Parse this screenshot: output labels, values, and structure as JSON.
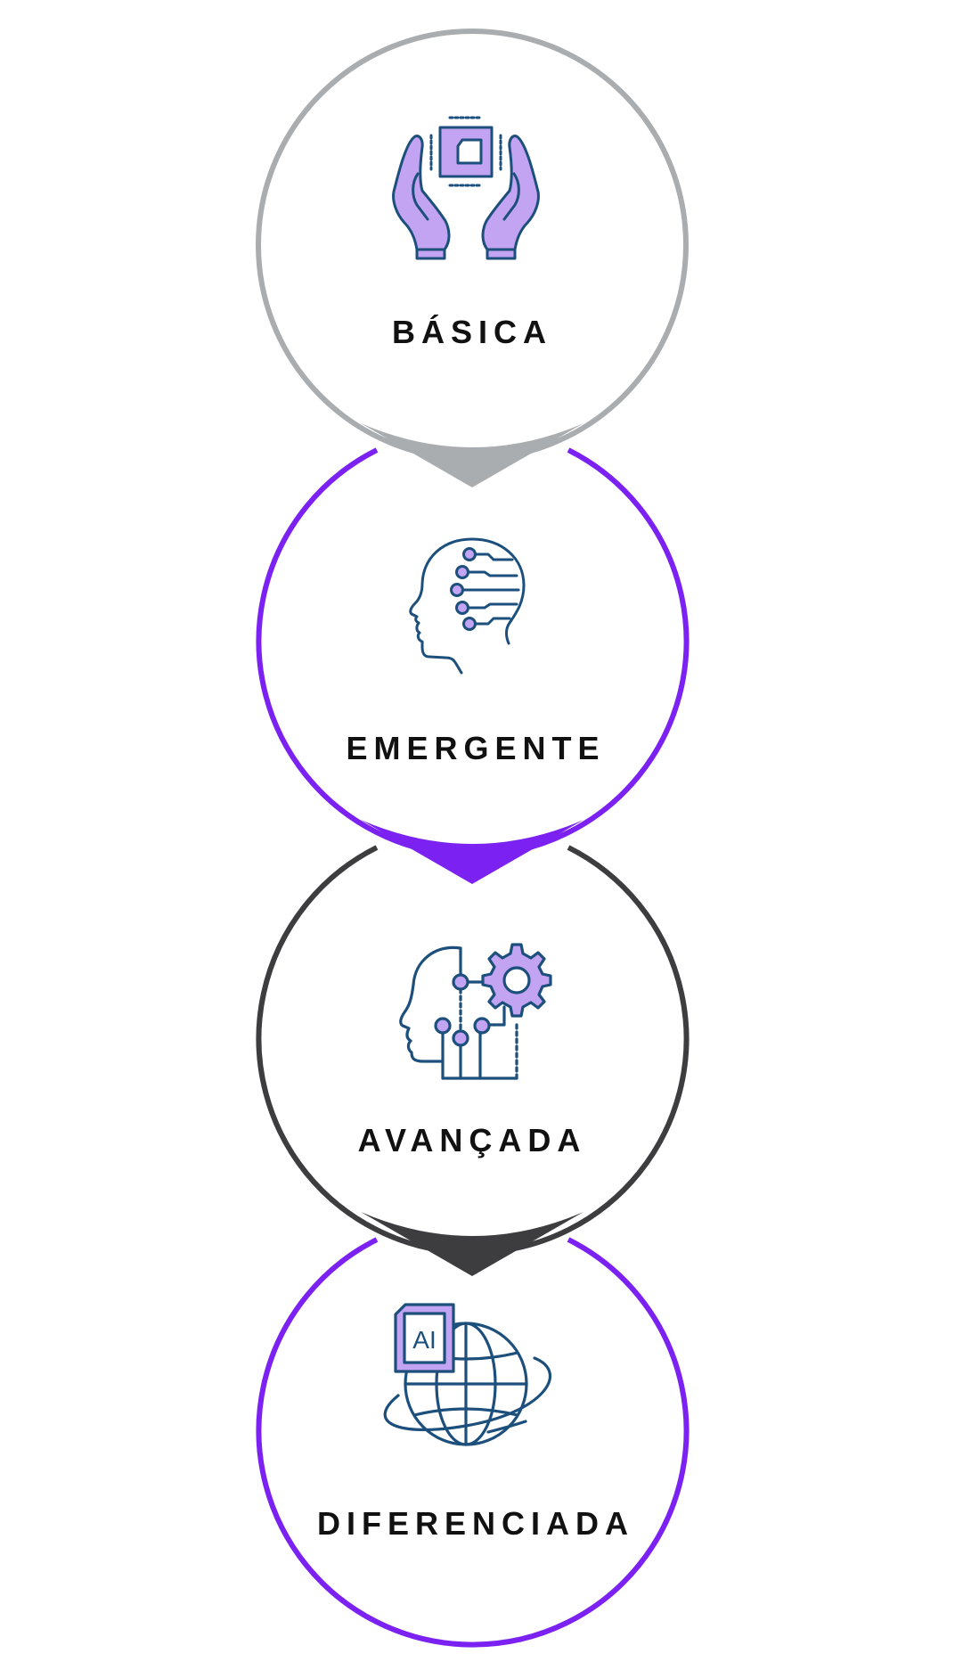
{
  "stages": [
    {
      "label": "BÁSICA",
      "icon": "hands-holding-chip-icon",
      "ring_color": "#a9adb0"
    },
    {
      "label": "EMERGENTE",
      "icon": "ai-head-circuit-icon",
      "ring_color": "#7b22f2"
    },
    {
      "label": "AVANÇADA",
      "icon": "ai-head-gear-icon",
      "ring_color": "#3d3d3f"
    },
    {
      "label": "DIFERENCIADA",
      "icon": "ai-globe-icon",
      "ring_color": "#7b22f2"
    }
  ],
  "colors": {
    "icon_stroke": "#1d4f7c",
    "icon_fill": "#c2a4f2",
    "label_text": "#111111"
  },
  "icons": {
    "ai_chip_text": "AI"
  }
}
